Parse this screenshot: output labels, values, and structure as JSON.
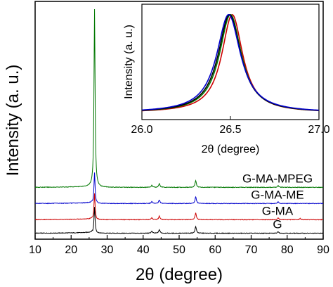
{
  "chart_data": [
    {
      "type": "line",
      "xlabel": "2θ (degree)",
      "ylabel": "Intensity (a. u.)",
      "xlim": [
        10,
        90
      ],
      "xticks": [
        10,
        20,
        30,
        40,
        50,
        60,
        70,
        80,
        90
      ],
      "yticks": [],
      "grid": false,
      "legend": "series labels printed above each trace on the right",
      "series": [
        {
          "name": "G",
          "color": "#000000",
          "baseline": 0.025,
          "peaks": [
            {
              "x": 26.5,
              "h": 0.11
            },
            {
              "x": 42.4,
              "h": 0.008
            },
            {
              "x": 44.5,
              "h": 0.015
            },
            {
              "x": 54.6,
              "h": 0.028
            },
            {
              "x": 77.5,
              "h": 0.007
            }
          ]
        },
        {
          "name": "G-MA",
          "color": "#cc0000",
          "baseline": 0.082,
          "peaks": [
            {
              "x": 26.5,
              "h": 0.11
            },
            {
              "x": 42.4,
              "h": 0.008
            },
            {
              "x": 44.5,
              "h": 0.015
            },
            {
              "x": 54.6,
              "h": 0.028
            },
            {
              "x": 77.5,
              "h": 0.007
            },
            {
              "x": 83.6,
              "h": 0.005
            }
          ]
        },
        {
          "name": "G-MA-ME",
          "color": "#0000cc",
          "baseline": 0.15,
          "peaks": [
            {
              "x": 26.5,
              "h": 0.13
            },
            {
              "x": 42.4,
              "h": 0.008
            },
            {
              "x": 44.5,
              "h": 0.015
            },
            {
              "x": 54.6,
              "h": 0.028
            },
            {
              "x": 77.5,
              "h": 0.007
            }
          ]
        },
        {
          "name": "G-MA-MPEG",
          "color": "#007700",
          "baseline": 0.218,
          "peaks": [
            {
              "x": 26.5,
              "h": 0.75
            },
            {
              "x": 42.4,
              "h": 0.008
            },
            {
              "x": 44.5,
              "h": 0.015
            },
            {
              "x": 54.6,
              "h": 0.028
            },
            {
              "x": 77.5,
              "h": 0.007
            }
          ]
        }
      ]
    },
    {
      "type": "line",
      "inset": true,
      "xlabel": "2θ (degree)",
      "ylabel": "Intensity (a. u.)",
      "xlim": [
        26.0,
        27.0
      ],
      "xticks": [
        "26.0",
        "26.5",
        "27.0"
      ],
      "grid": false,
      "series": [
        {
          "color": "#cc0000",
          "center": 26.51,
          "width": 0.072
        },
        {
          "color": "#007700",
          "center": 26.5,
          "width": 0.076
        },
        {
          "color": "#000000",
          "center": 26.495,
          "width": 0.078
        },
        {
          "color": "#0000cc",
          "center": 26.49,
          "width": 0.082
        }
      ]
    }
  ]
}
